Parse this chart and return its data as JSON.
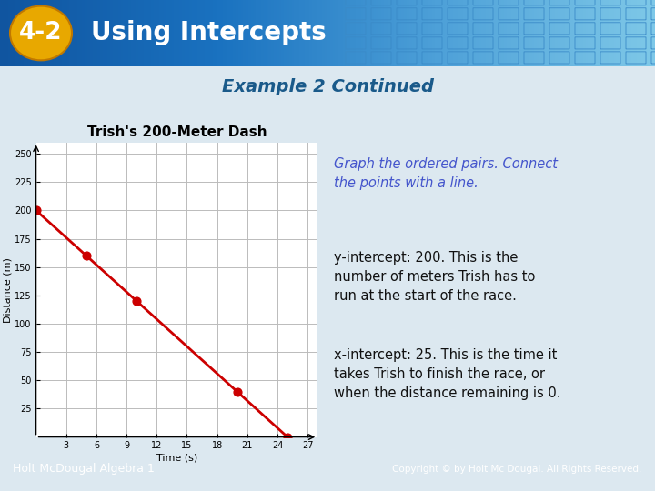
{
  "slide_bg": "#dce8f0",
  "header_bg_left": "#1a6aad",
  "header_bg_right": "#5ba8d8",
  "header_badge_bg": "#e8a800",
  "header_badge_text": "4-2",
  "header_title": "Using Intercepts",
  "subtitle": "Example 2 Continued",
  "subtitle_color": "#1a5a8a",
  "chart_title": "Trish's 200-Meter Dash",
  "chart_title_fontsize": 11,
  "xlabel": "Time (s)",
  "ylabel": "Distance (m)",
  "x_data": [
    0,
    5,
    10,
    15,
    20,
    25
  ],
  "y_data": [
    200,
    160,
    120,
    80,
    40,
    0
  ],
  "dot_x": [
    0,
    5,
    10,
    20,
    25
  ],
  "dot_y": [
    200,
    160,
    120,
    40,
    0
  ],
  "line_color": "#cc0000",
  "dot_color": "#cc0000",
  "dot_size": 40,
  "x_ticks": [
    3,
    6,
    9,
    12,
    15,
    18,
    21,
    24,
    27
  ],
  "y_ticks": [
    25,
    50,
    75,
    100,
    125,
    150,
    175,
    200,
    225,
    250
  ],
  "xlim": [
    0,
    28
  ],
  "ylim": [
    0,
    260
  ],
  "grid_color": "#bbbbbb",
  "chart_bg": "#ffffff",
  "right_text_1": "Graph the ordered pairs. Connect\nthe points with a line.",
  "right_text_1_color": "#4455cc",
  "right_text_2": "y-intercept: 200. This is the\nnumber of meters Trish has to\nrun at the start of the race.",
  "right_text_3": "x-intercept: 25. This is the time it\ntakes Trish to finish the race, or\nwhen the distance remaining is 0.",
  "right_text_color": "#111111",
  "footer_bg": "#1a6aad",
  "footer_text": "Holt McDougal Algebra 1",
  "footer_text_color": "#ffffff",
  "copyright_text": "Copyright © by Holt Mc Dougal. All Rights Reserved.",
  "copyright_text_color": "#ffffff"
}
